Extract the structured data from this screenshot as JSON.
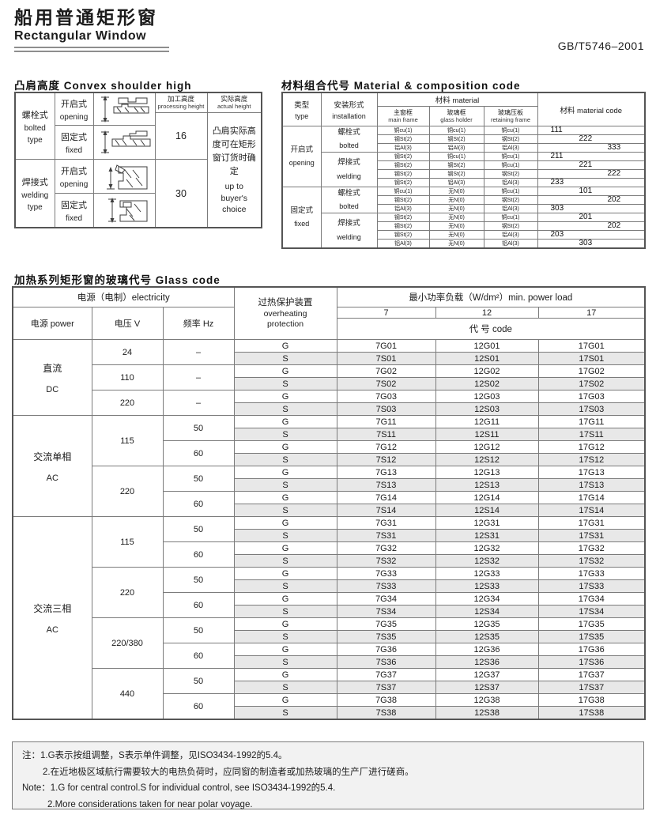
{
  "page": {
    "title_zh": "船用普通矩形窗",
    "title_en": "Rectangular Window",
    "standard_code": "GB/T5746–2001"
  },
  "colors": {
    "s_row_shade": "#e8e8e8",
    "note_background": "#f2f2f2",
    "border_gray": "#7b7b7b"
  },
  "convex": {
    "section_title": "凸肩高度 Convex shoulder high",
    "col_processing": {
      "zh": "加工高度",
      "en": "processing height"
    },
    "col_actual": {
      "zh": "实际高度",
      "en": "actual height"
    },
    "bolted": {
      "zh": "螺栓式",
      "en": "bolted",
      "en2": "type"
    },
    "welding": {
      "zh": "焊接式",
      "en": "welding",
      "en2": "type"
    },
    "opening": {
      "zh": "开启式",
      "en": "opening"
    },
    "fixed": {
      "zh": "固定式",
      "en": "fixed"
    },
    "processing_bolted": "16",
    "processing_welding": "30",
    "actual_note_zh": "凸肩实际高度可在矩形窗订货时确定",
    "actual_note_en": "up to buyer's choice",
    "drawing_icon": "window-cross-section-drawing"
  },
  "material": {
    "section_title": "材料组合代号 Material & composition code",
    "headers": {
      "type_zh": "类型",
      "type_en": "type",
      "install_zh": "安装形式",
      "install_en": "installation",
      "material_group": "材料 material",
      "main_zh": "主窗框",
      "main_en": "main frame",
      "holder_zh": "玻璃框",
      "holder_en": "glass holder",
      "retaining_zh": "玻璃压板",
      "retaining_en": "retaining frame",
      "code": "材料  material code"
    },
    "groups": [
      {
        "type_zh": "开启式",
        "type_en": "opening",
        "installs": [
          {
            "zh": "螺栓式",
            "en": "bolted",
            "rows": [
              {
                "main": "铜cu(1)",
                "holder": "铜cu(1)",
                "retain": "铜cu(1)",
                "code": "111",
                "indent": 0
              },
              {
                "main": "钢St(2)",
                "holder": "钢St(2)",
                "retain": "钢St(2)",
                "code": "222",
                "indent": 1
              },
              {
                "main": "铝Al(3)",
                "holder": "铝Al(3)",
                "retain": "铝Al(3)",
                "code": "333",
                "indent": 2
              }
            ]
          },
          {
            "zh": "焊接式",
            "en": "welding",
            "rows": [
              {
                "main": "钢St(2)",
                "holder": "铜cu(1)",
                "retain": "铜cu(1)",
                "code": "211",
                "indent": 0
              },
              {
                "main": "钢St(2)",
                "holder": "钢St(2)",
                "retain": "铜cu(1)",
                "code": "221",
                "indent": 1
              },
              {
                "main": "钢St(2)",
                "holder": "钢St(2)",
                "retain": "钢St(2)",
                "code": "222",
                "indent": 2
              },
              {
                "main": "钢St(2)",
                "holder": "铝Al(3)",
                "retain": "铝Al(3)",
                "code": "233",
                "indent": 0
              }
            ]
          }
        ]
      },
      {
        "type_zh": "固定式",
        "type_en": "fixed",
        "installs": [
          {
            "zh": "螺栓式",
            "en": "bolted",
            "rows": [
              {
                "main": "铜cu(1)",
                "holder": "无N(0)",
                "retain": "铜cu(1)",
                "code": "101",
                "indent": 1
              },
              {
                "main": "钢St(2)",
                "holder": "无N(0)",
                "retain": "钢St(2)",
                "code": "202",
                "indent": 2
              },
              {
                "main": "铝Al(3)",
                "holder": "无N(0)",
                "retain": "铝Al(3)",
                "code": "303",
                "indent": 0
              }
            ]
          },
          {
            "zh": "焊接式",
            "en": "welding",
            "rows": [
              {
                "main": "钢St(2)",
                "holder": "无N(0)",
                "retain": "铜cu(1)",
                "code": "201",
                "indent": 1
              },
              {
                "main": "钢St(2)",
                "holder": "无N(0)",
                "retain": "钢St(2)",
                "code": "202",
                "indent": 2
              },
              {
                "main": "钢St(2)",
                "holder": "无N(0)",
                "retain": "铝Al(3)",
                "code": "203",
                "indent": 0
              },
              {
                "main": "铝Al(3)",
                "holder": "无N(0)",
                "retain": "铝Al(3)",
                "code": "303",
                "indent": 1
              }
            ]
          }
        ]
      }
    ]
  },
  "glass": {
    "section_title": "加热系列矩形窗的玻璃代号  Glass code",
    "header": {
      "electricity": "电源（电制）electricity",
      "power": "电源  power",
      "voltage": "电压 V",
      "freq": "频率 Hz",
      "protection_zh": "过热保护装置",
      "protection_en1": "overheating",
      "protection_en2": "protection",
      "load": "最小功率负载（W/dm²）min. power load",
      "load_cols": [
        "7",
        "12",
        "17"
      ],
      "code": "代 号 code"
    },
    "groups": [
      {
        "power": "直流",
        "power_en": "DC",
        "voltages": [
          {
            "v": "24",
            "freqs": [
              {
                "hz": "–",
                "rows": [
                  [
                    "G",
                    "7G01",
                    "12G01",
                    "17G01"
                  ],
                  [
                    "S",
                    "7S01",
                    "12S01",
                    "17S01"
                  ]
                ]
              }
            ]
          },
          {
            "v": "110",
            "freqs": [
              {
                "hz": "–",
                "rows": [
                  [
                    "G",
                    "7G02",
                    "12G02",
                    "17G02"
                  ],
                  [
                    "S",
                    "7S02",
                    "12S02",
                    "17S02"
                  ]
                ]
              }
            ]
          },
          {
            "v": "220",
            "freqs": [
              {
                "hz": "–",
                "rows": [
                  [
                    "G",
                    "7G03",
                    "12G03",
                    "17G03"
                  ],
                  [
                    "S",
                    "7S03",
                    "12S03",
                    "17S03"
                  ]
                ]
              }
            ]
          }
        ]
      },
      {
        "power": "交流单相",
        "power_en": "AC",
        "voltages": [
          {
            "v": "115",
            "freqs": [
              {
                "hz": "50",
                "rows": [
                  [
                    "G",
                    "7G11",
                    "12G11",
                    "17G11"
                  ],
                  [
                    "S",
                    "7S11",
                    "12S11",
                    "17S11"
                  ]
                ]
              },
              {
                "hz": "60",
                "rows": [
                  [
                    "G",
                    "7G12",
                    "12G12",
                    "17G12"
                  ],
                  [
                    "S",
                    "7S12",
                    "12S12",
                    "17S12"
                  ]
                ]
              }
            ]
          },
          {
            "v": "220",
            "freqs": [
              {
                "hz": "50",
                "rows": [
                  [
                    "G",
                    "7G13",
                    "12G13",
                    "17G13"
                  ],
                  [
                    "S",
                    "7S13",
                    "12S13",
                    "17S13"
                  ]
                ]
              },
              {
                "hz": "60",
                "rows": [
                  [
                    "G",
                    "7G14",
                    "12G14",
                    "17G14"
                  ],
                  [
                    "S",
                    "7S14",
                    "12S14",
                    "17S14"
                  ]
                ]
              }
            ]
          }
        ]
      },
      {
        "power": "交流三相",
        "power_en": "AC",
        "voltages": [
          {
            "v": "115",
            "freqs": [
              {
                "hz": "50",
                "rows": [
                  [
                    "G",
                    "7G31",
                    "12G31",
                    "17G31"
                  ],
                  [
                    "S",
                    "7S31",
                    "12S31",
                    "17S31"
                  ]
                ]
              },
              {
                "hz": "60",
                "rows": [
                  [
                    "G",
                    "7G32",
                    "12G32",
                    "17G32"
                  ],
                  [
                    "S",
                    "7S32",
                    "12S32",
                    "17S32"
                  ]
                ]
              }
            ]
          },
          {
            "v": "220",
            "freqs": [
              {
                "hz": "50",
                "rows": [
                  [
                    "G",
                    "7G33",
                    "12G33",
                    "17G33"
                  ],
                  [
                    "S",
                    "7S33",
                    "12S33",
                    "17S33"
                  ]
                ]
              },
              {
                "hz": "60",
                "rows": [
                  [
                    "G",
                    "7G34",
                    "12G34",
                    "17G34"
                  ],
                  [
                    "S",
                    "7S34",
                    "12S34",
                    "17S34"
                  ]
                ]
              }
            ]
          },
          {
            "v": "220/380",
            "freqs": [
              {
                "hz": "50",
                "rows": [
                  [
                    "G",
                    "7G35",
                    "12G35",
                    "17G35"
                  ],
                  [
                    "S",
                    "7S35",
                    "12S35",
                    "17S35"
                  ]
                ]
              },
              {
                "hz": "60",
                "rows": [
                  [
                    "G",
                    "7G36",
                    "12G36",
                    "17G36"
                  ],
                  [
                    "S",
                    "7S36",
                    "12S36",
                    "17S36"
                  ]
                ]
              }
            ]
          },
          {
            "v": "440",
            "freqs": [
              {
                "hz": "50",
                "rows": [
                  [
                    "G",
                    "7G37",
                    "12G37",
                    "17G37"
                  ],
                  [
                    "S",
                    "7S37",
                    "12S37",
                    "17S37"
                  ]
                ]
              },
              {
                "hz": "60",
                "rows": [
                  [
                    "G",
                    "7G38",
                    "12G38",
                    "17G38"
                  ],
                  [
                    "S",
                    "7S38",
                    "12S38",
                    "17S38"
                  ]
                ]
              }
            ]
          }
        ]
      }
    ]
  },
  "notes": {
    "line1": "注：1.G表示按组调整，S表示单件调整，见ISO3434-1992的5.4。",
    "line2": "2.在近地极区域航行需要较大的电热负荷时，应同窗的制造者或加热玻璃的生产厂进行磋商。",
    "line3": "Note：1.G for central control.S for individual control, see ISO3434-1992的5.4.",
    "line4": "2.More considerations taken for near polar voyage."
  }
}
